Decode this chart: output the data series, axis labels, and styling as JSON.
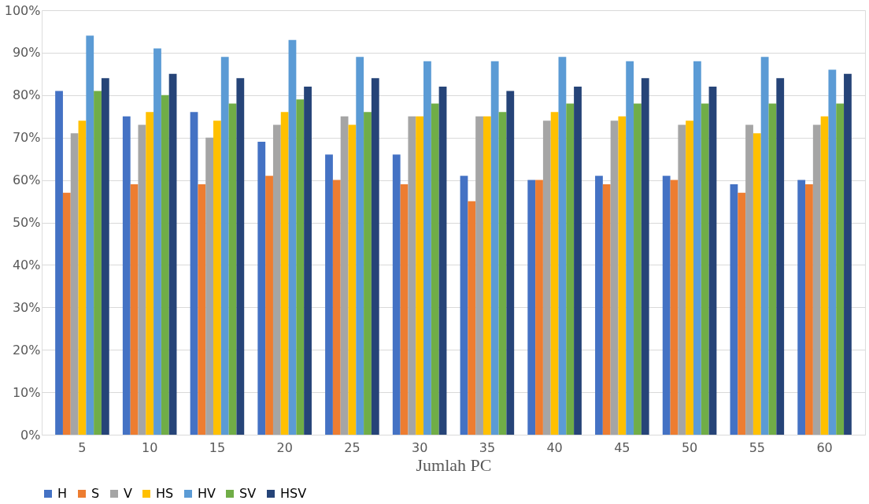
{
  "chart_data": {
    "type": "bar",
    "xlabel": "Jumlah PC",
    "categories": [
      "5",
      "10",
      "15",
      "20",
      "25",
      "30",
      "35",
      "40",
      "45",
      "50",
      "55",
      "60"
    ],
    "series": [
      {
        "name": "H",
        "color": "#4472c4",
        "values": [
          81,
          75,
          76,
          69,
          66,
          66,
          61,
          60,
          61,
          61,
          59,
          60
        ]
      },
      {
        "name": "S",
        "color": "#ed7d31",
        "values": [
          57,
          59,
          59,
          61,
          60,
          59,
          55,
          60,
          59,
          60,
          57,
          59
        ]
      },
      {
        "name": "V",
        "color": "#a5a5a5",
        "values": [
          71,
          73,
          70,
          73,
          75,
          75,
          75,
          74,
          74,
          73,
          73,
          73
        ]
      },
      {
        "name": "HS",
        "color": "#ffc000",
        "values": [
          74,
          76,
          74,
          76,
          73,
          75,
          75,
          76,
          75,
          74,
          71,
          75
        ]
      },
      {
        "name": "HV",
        "color": "#5b9bd5",
        "values": [
          94,
          91,
          89,
          93,
          89,
          88,
          88,
          89,
          88,
          88,
          89,
          86
        ]
      },
      {
        "name": "SV",
        "color": "#70ad47",
        "values": [
          81,
          80,
          78,
          79,
          76,
          78,
          76,
          78,
          78,
          78,
          78,
          78
        ]
      },
      {
        "name": "HSV",
        "color": "#264478",
        "values": [
          84,
          85,
          84,
          82,
          84,
          82,
          81,
          82,
          84,
          82,
          84,
          85
        ]
      }
    ],
    "ylim": [
      0,
      100
    ],
    "yticks": [
      {
        "value": 0,
        "label": "0%"
      },
      {
        "value": 10,
        "label": "10%"
      },
      {
        "value": 20,
        "label": "20%"
      },
      {
        "value": 30,
        "label": "30%"
      },
      {
        "value": 40,
        "label": "40%"
      },
      {
        "value": 50,
        "label": "50%"
      },
      {
        "value": 60,
        "label": "60%"
      },
      {
        "value": 70,
        "label": "70%"
      },
      {
        "value": 80,
        "label": "80%"
      },
      {
        "value": 90,
        "label": "90%"
      },
      {
        "value": 100,
        "label": "100%"
      }
    ],
    "grid": "y",
    "legend": "bottom"
  }
}
